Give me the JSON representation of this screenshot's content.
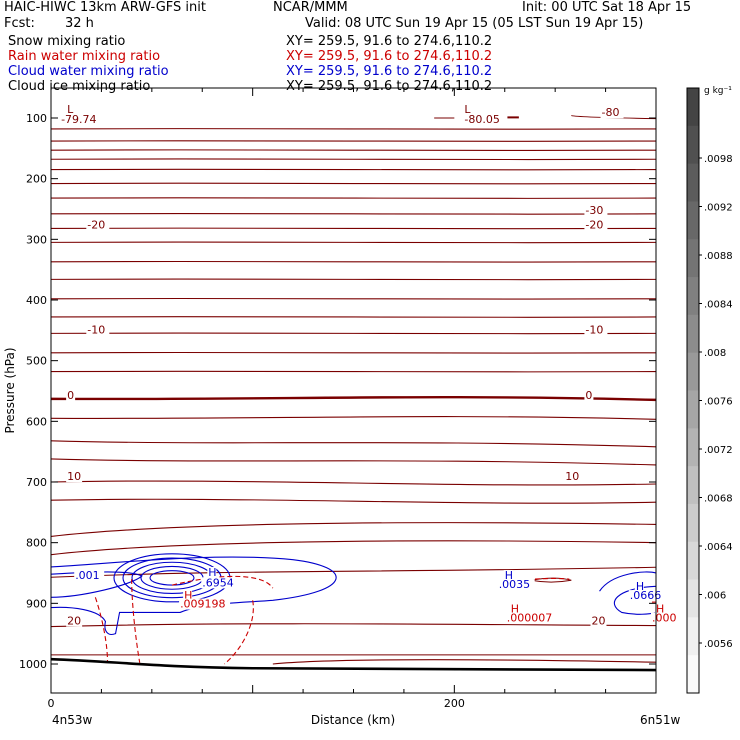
{
  "header": {
    "model": "HAIC-HIWC 13km ARW-GFS init",
    "org": "NCAR/MMM",
    "init": "Init: 00 UTC Sat 18 Apr 15",
    "fcst_label": "Fcst:",
    "fcst_value": "32 h",
    "valid": "Valid: 08 UTC Sun 19 Apr 15 (05 LST Sun 19 Apr 15)"
  },
  "fields": [
    {
      "name": "Snow mixing ratio",
      "xy": "XY= 259.5, 91.6 to 274.6,110.2",
      "color": "#000000"
    },
    {
      "name": "Rain water mixing ratio",
      "xy": "XY= 259.5, 91.6 to 274.6,110.2",
      "color": "#cc0000"
    },
    {
      "name": "Cloud water mixing ratio",
      "xy": "XY= 259.5, 91.6 to 274.6,110.2",
      "color": "#0000cc"
    },
    {
      "name": "Cloud ice mixing ratio",
      "xy": "XY= 259.5, 91.6 to 274.6,110.2",
      "color": "#000000"
    }
  ],
  "chart_data": {
    "type": "line",
    "xlabel": "Distance (km)",
    "ylabel": "Pressure (hPa)",
    "xlim": [
      0,
      300
    ],
    "ylim": [
      1050,
      70
    ],
    "xticks": [
      0,
      200
    ],
    "yticks": [
      100,
      200,
      300,
      400,
      500,
      600,
      700,
      800,
      900,
      1000
    ],
    "x_endpoint_labels": [
      "4n53w",
      "6n51w"
    ],
    "temperature_isotherms": {
      "color": "#7a0000",
      "pressure_levels": [
        118,
        138,
        153,
        168,
        185,
        208,
        232,
        258,
        282,
        305,
        337,
        366,
        398,
        428,
        455,
        487,
        518,
        563,
        595,
        637,
        667,
        700,
        730,
        770,
        800,
        857,
        935
      ],
      "labels": [
        {
          "text": "-79.74",
          "x": 5,
          "p": 108
        },
        {
          "text": "-80.05",
          "x": 205,
          "p": 108
        },
        {
          "text": "-80",
          "x": 273,
          "p": 97
        },
        {
          "text": "-30",
          "x": 265,
          "p": 258
        },
        {
          "text": "-20",
          "x": 265,
          "p": 282
        },
        {
          "text": "-20",
          "x": 18,
          "p": 282
        },
        {
          "text": "-10",
          "x": 265,
          "p": 455
        },
        {
          "text": "-10",
          "x": 18,
          "p": 455
        },
        {
          "text": "0",
          "x": 8,
          "p": 563
        },
        {
          "text": "0",
          "x": 265,
          "p": 563
        },
        {
          "text": "10",
          "x": 8,
          "p": 697
        },
        {
          "text": "10",
          "x": 255,
          "p": 697
        },
        {
          "text": "20",
          "x": 8,
          "p": 935
        },
        {
          "text": "20",
          "x": 268,
          "p": 935
        }
      ],
      "low_centers": [
        {
          "text": "L",
          "x": 8,
          "p": 92
        },
        {
          "text": "L",
          "x": 205,
          "p": 92
        }
      ]
    },
    "cloud_water": {
      "color": "#0000cc",
      "labels": [
        {
          "text": ".001",
          "x": 12,
          "p": 860
        },
        {
          "text": "H",
          "x": 78,
          "p": 855
        },
        {
          "text": ".6954",
          "x": 75,
          "p": 872
        },
        {
          "text": "H",
          "x": 225,
          "p": 860
        },
        {
          "text": ".0035",
          "x": 222,
          "p": 875
        },
        {
          "text": "H",
          "x": 290,
          "p": 878
        },
        {
          "text": ".0666",
          "x": 287,
          "p": 893
        }
      ]
    },
    "rain_water": {
      "color": "#cc0000",
      "labels": [
        {
          "text": "H",
          "x": 66,
          "p": 893
        },
        {
          "text": ".009198",
          "x": 64,
          "p": 907
        },
        {
          "text": "H",
          "x": 228,
          "p": 915
        },
        {
          "text": ".000007",
          "x": 226,
          "p": 930
        },
        {
          "text": "H",
          "x": 300,
          "p": 915
        },
        {
          "text": ".000",
          "x": 298,
          "p": 930
        }
      ]
    },
    "terrain": {
      "color": "#000000"
    },
    "colorbar": {
      "unit": "g kg⁻¹",
      "labels": [
        ".0098",
        ".0092",
        ".0088",
        ".0084",
        ".008",
        ".0076",
        ".0072",
        ".0068",
        ".0064",
        ".006",
        ".0056"
      ],
      "colors": [
        "#444444",
        "#505050",
        "#5c5c5c",
        "#686868",
        "#747474",
        "#808080",
        "#8c8c8c",
        "#999999",
        "#a6a6a6",
        "#b3b3b3",
        "#c0c0c0",
        "#cccccc",
        "#d8d8d8",
        "#e4e4e4",
        "#f0f0f0",
        "#fafafa"
      ]
    }
  }
}
